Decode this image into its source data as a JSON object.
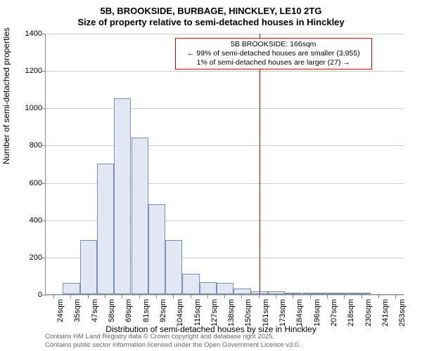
{
  "title": {
    "line1": "5B, BROOKSIDE, BURBAGE, HINCKLEY, LE10 2TG",
    "line2": "Size of property relative to semi-detached houses in Hinckley"
  },
  "chart": {
    "type": "histogram",
    "ylabel": "Number of semi-detached properties",
    "xlabel": "Distribution of semi-detached houses by size in Hinckley",
    "ylim": [
      0,
      1400
    ],
    "ytick_step": 200,
    "yticks": [
      0,
      200,
      400,
      600,
      800,
      1000,
      1200,
      1400
    ],
    "xticks": [
      "24sqm",
      "35sqm",
      "47sqm",
      "58sqm",
      "69sqm",
      "81sqm",
      "92sqm",
      "104sqm",
      "115sqm",
      "127sqm",
      "138sqm",
      "150sqm",
      "161sqm",
      "173sqm",
      "184sqm",
      "196sqm",
      "207sqm",
      "218sqm",
      "230sqm",
      "241sqm",
      "253sqm"
    ],
    "bar_values": [
      0,
      60,
      290,
      700,
      1050,
      840,
      480,
      290,
      110,
      65,
      60,
      30,
      15,
      15,
      5,
      2,
      2,
      2,
      1,
      0,
      0
    ],
    "bar_fill_color": "#e1e8f4",
    "bar_border_color": "#7a8fb0",
    "grid_color": "#cccccc",
    "axis_color": "#888888",
    "background_color": "#ffffff",
    "bar_width": 24.3,
    "label_fontsize": 12,
    "tick_fontsize": 11,
    "title_fontsize": 13,
    "vline": {
      "x_label": "166sqm",
      "x_index": 12.5,
      "color": "#cc0000"
    },
    "annotation": {
      "line1": "5B BROOKSIDE: 166sqm",
      "line2": "← 99% of semi-detached houses are smaller (3,955)",
      "line3": "1% of semi-detached houses are larger (27) →",
      "border_color": "#cc0000",
      "background_color": "#ffffff",
      "fontsize": 10.5
    }
  },
  "attribution": {
    "line1": "Contains HM Land Registry data © Crown copyright and database right 2025.",
    "line2": "Contains public sector information licensed under the Open Government Licence v3.0."
  }
}
